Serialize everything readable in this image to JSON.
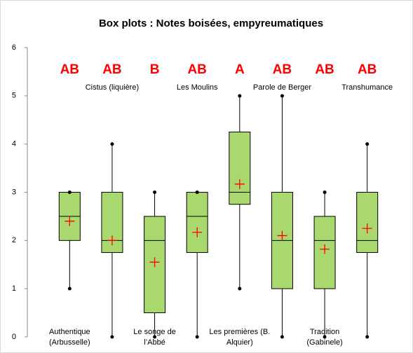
{
  "chart_data": {
    "type": "box",
    "title": "Box plots : Notes boisées, empyreumatiques",
    "categories": [
      "Authentique (Arbusselle)",
      "Cistus (liquière)",
      "Le songe de l’Abbé",
      "Les Moulins",
      "Les premières (B. Alquier)",
      "Parole de Berger",
      "Tradition (Gabinele)",
      "Transhumance"
    ],
    "min": [
      1,
      0,
      0,
      0,
      1,
      0,
      0,
      0
    ],
    "q1": [
      2,
      1.75,
      0.5,
      1.75,
      2.75,
      1,
      1,
      1.75
    ],
    "median": [
      2.5,
      2,
      2,
      2.5,
      3,
      2,
      2,
      2
    ],
    "q3": [
      3,
      3,
      2.5,
      3,
      4.25,
      3,
      2.5,
      3
    ],
    "max": [
      3,
      4,
      3,
      3,
      5,
      5,
      3,
      4
    ],
    "mean": [
      2.4,
      2,
      1.55,
      2.17,
      3.17,
      2.1,
      1.82,
      2.25
    ],
    "letters": [
      "AB",
      "AB",
      "B",
      "AB",
      "A",
      "AB",
      "AB",
      "AB"
    ],
    "color": "#a9d86e",
    "mean_color": "#ff0000",
    "letter_color": "#ff0000",
    "ylim": [
      0,
      6
    ],
    "yticks": [
      0,
      1,
      2,
      3,
      4,
      5,
      6
    ],
    "grid": false
  }
}
